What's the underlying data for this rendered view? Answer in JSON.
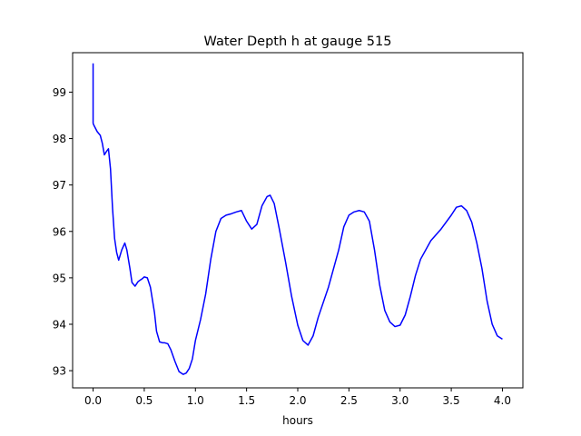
{
  "chart_data": {
    "type": "line",
    "title": "Water Depth h at gauge 515",
    "xlabel": "hours",
    "ylabel": "",
    "xlim": [
      -0.2,
      4.2
    ],
    "ylim": [
      92.63,
      99.85
    ],
    "xticks": [
      0.0,
      0.5,
      1.0,
      1.5,
      2.0,
      2.5,
      3.0,
      3.5,
      4.0
    ],
    "xtick_labels": [
      "0.0",
      "0.5",
      "1.0",
      "1.5",
      "2.0",
      "2.5",
      "3.0",
      "3.5",
      "4.0"
    ],
    "yticks": [
      93,
      94,
      95,
      96,
      97,
      98,
      99
    ],
    "ytick_labels": [
      "93",
      "94",
      "95",
      "96",
      "97",
      "98",
      "99"
    ],
    "grid": false,
    "series": [
      {
        "color": "#0000ff",
        "x": [
          0.0,
          0.0,
          0.005,
          0.04,
          0.07,
          0.09,
          0.11,
          0.13,
          0.15,
          0.17,
          0.19,
          0.21,
          0.23,
          0.25,
          0.28,
          0.31,
          0.33,
          0.36,
          0.38,
          0.41,
          0.44,
          0.46,
          0.48,
          0.5,
          0.53,
          0.56,
          0.6,
          0.62,
          0.65,
          0.68,
          0.7,
          0.73,
          0.76,
          0.8,
          0.84,
          0.88,
          0.91,
          0.94,
          0.97,
          1.0,
          1.05,
          1.1,
          1.15,
          1.2,
          1.25,
          1.3,
          1.35,
          1.4,
          1.45,
          1.5,
          1.55,
          1.6,
          1.65,
          1.7,
          1.73,
          1.77,
          1.82,
          1.88,
          1.94,
          2.0,
          2.05,
          2.1,
          2.15,
          2.2,
          2.3,
          2.4,
          2.45,
          2.5,
          2.55,
          2.6,
          2.65,
          2.7,
          2.75,
          2.8,
          2.85,
          2.9,
          2.95,
          3.0,
          3.05,
          3.1,
          3.15,
          3.2,
          3.3,
          3.4,
          3.5,
          3.55,
          3.6,
          3.65,
          3.7,
          3.75,
          3.8,
          3.85,
          3.9,
          3.95,
          4.0
        ],
        "y": [
          99.62,
          98.33,
          98.3,
          98.15,
          98.07,
          97.9,
          97.65,
          97.72,
          97.78,
          97.35,
          96.5,
          95.85,
          95.55,
          95.38,
          95.6,
          95.75,
          95.6,
          95.2,
          94.9,
          94.82,
          94.92,
          94.95,
          94.98,
          95.02,
          95.0,
          94.8,
          94.25,
          93.85,
          93.62,
          93.6,
          93.6,
          93.58,
          93.45,
          93.2,
          92.98,
          92.92,
          92.95,
          93.05,
          93.25,
          93.65,
          94.1,
          94.65,
          95.4,
          96.0,
          96.28,
          96.35,
          96.38,
          96.42,
          96.45,
          96.22,
          96.05,
          96.15,
          96.55,
          96.75,
          96.78,
          96.6,
          96.05,
          95.35,
          94.6,
          93.98,
          93.65,
          93.55,
          93.75,
          94.15,
          94.8,
          95.6,
          96.1,
          96.35,
          96.42,
          96.45,
          96.42,
          96.22,
          95.6,
          94.85,
          94.3,
          94.05,
          93.95,
          93.98,
          94.2,
          94.6,
          95.05,
          95.4,
          95.8,
          96.05,
          96.35,
          96.52,
          96.55,
          96.45,
          96.2,
          95.75,
          95.2,
          94.5,
          94.0,
          93.75,
          93.68
        ]
      }
    ]
  }
}
